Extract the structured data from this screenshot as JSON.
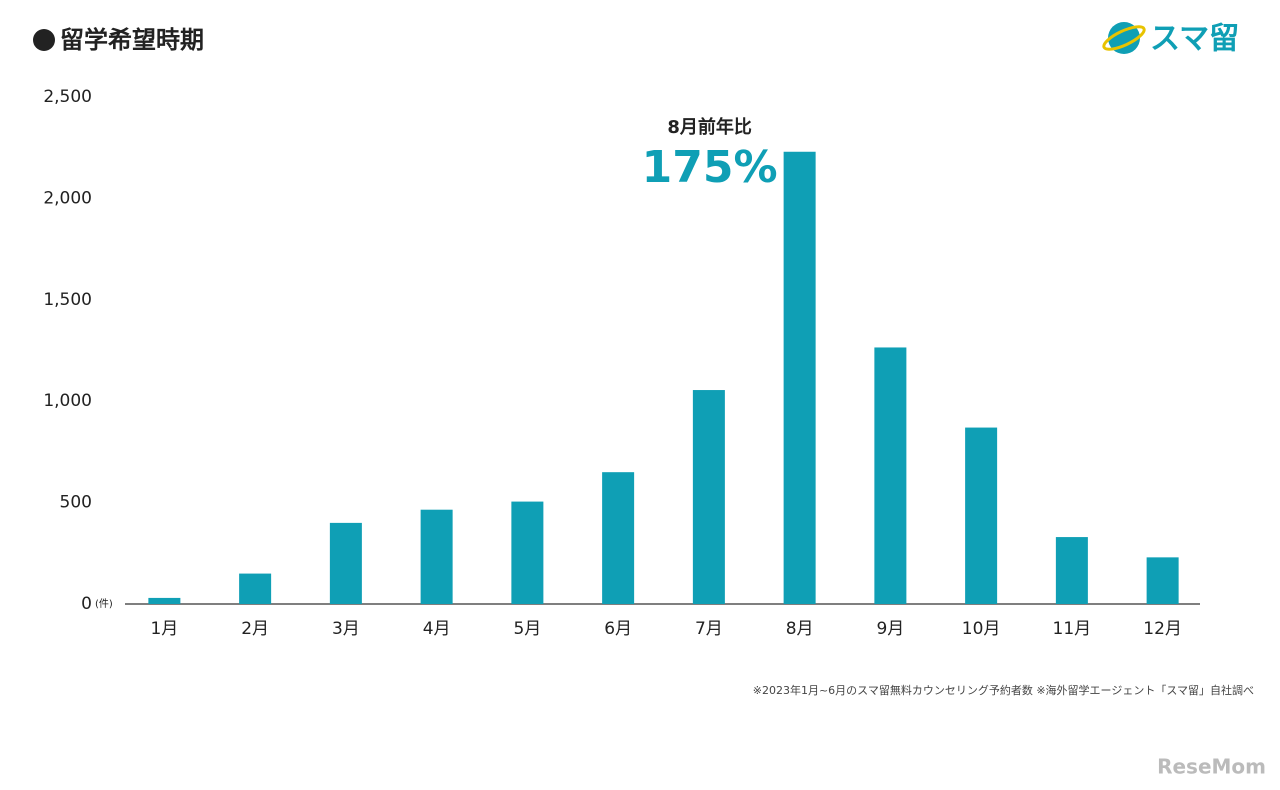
{
  "header": {
    "title": "留学希望時期",
    "logo": "スマ留"
  },
  "chart_data": {
    "type": "bar",
    "categories": [
      "1月",
      "2月",
      "3月",
      "4月",
      "5月",
      "6月",
      "7月",
      "8月",
      "9月",
      "10月",
      "11月",
      "12月"
    ],
    "values": [
      30,
      150,
      400,
      465,
      505,
      650,
      1055,
      2230,
      1265,
      870,
      330,
      230
    ],
    "color": "#0f9fb5",
    "ylim": [
      0,
      2500
    ],
    "yticks": [
      0,
      {
        "value": 500,
        "label": "500"
      },
      {
        "value": 1000,
        "label": "1,000"
      },
      {
        "value": 1500,
        "label": "1,500"
      },
      {
        "value": 2000,
        "label": "2,000"
      },
      {
        "value": 2500,
        "label": "2,500"
      }
    ],
    "y_unit": "(件)",
    "annotation": {
      "label": "8月前年比",
      "value": "175%"
    },
    "grid": false
  },
  "footnote": "※2023年1月~6月のスマ留無料カウンセリング予約者数 ※海外留学エージェント「スマ留」自社調べ",
  "watermark": "ReseMom"
}
